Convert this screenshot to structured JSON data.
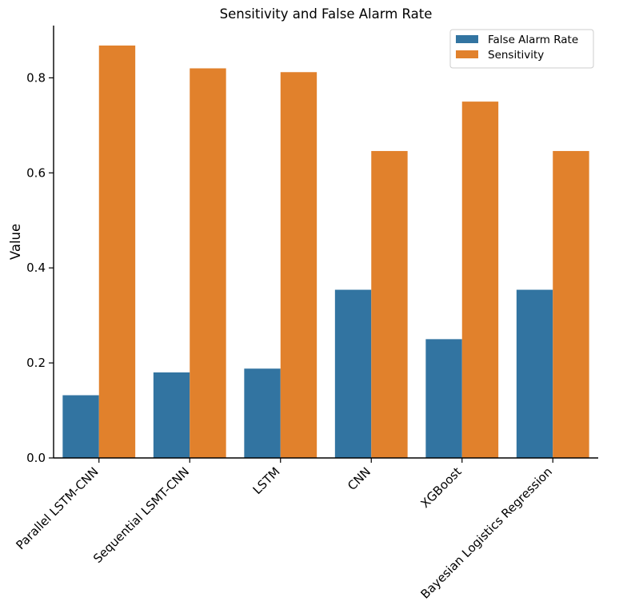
{
  "chart_data": {
    "type": "bar",
    "title": "Sensitivity and False Alarm Rate",
    "xlabel": "",
    "ylabel": "Value",
    "categories": [
      "Parallel LSTM-CNN",
      "Sequential LSMT-CNN",
      "LSTM",
      "CNN",
      "XGBoost",
      "Bayesian Logistics Regression"
    ],
    "series": [
      {
        "name": "False Alarm Rate",
        "color": "#3274a1",
        "values": [
          0.132,
          0.18,
          0.188,
          0.354,
          0.25,
          0.354
        ]
      },
      {
        "name": "Sensitivity",
        "color": "#e1812c",
        "values": [
          0.868,
          0.82,
          0.812,
          0.646,
          0.75,
          0.646
        ]
      }
    ],
    "ylim": [
      0,
      0.91
    ],
    "yticks": [
      0.0,
      0.2,
      0.4,
      0.6,
      0.8
    ],
    "ytick_labels": [
      "0.0",
      "0.2",
      "0.4",
      "0.6",
      "0.8"
    ],
    "grid": false,
    "legend_position": "top-right",
    "xtick_rotation": 45
  }
}
